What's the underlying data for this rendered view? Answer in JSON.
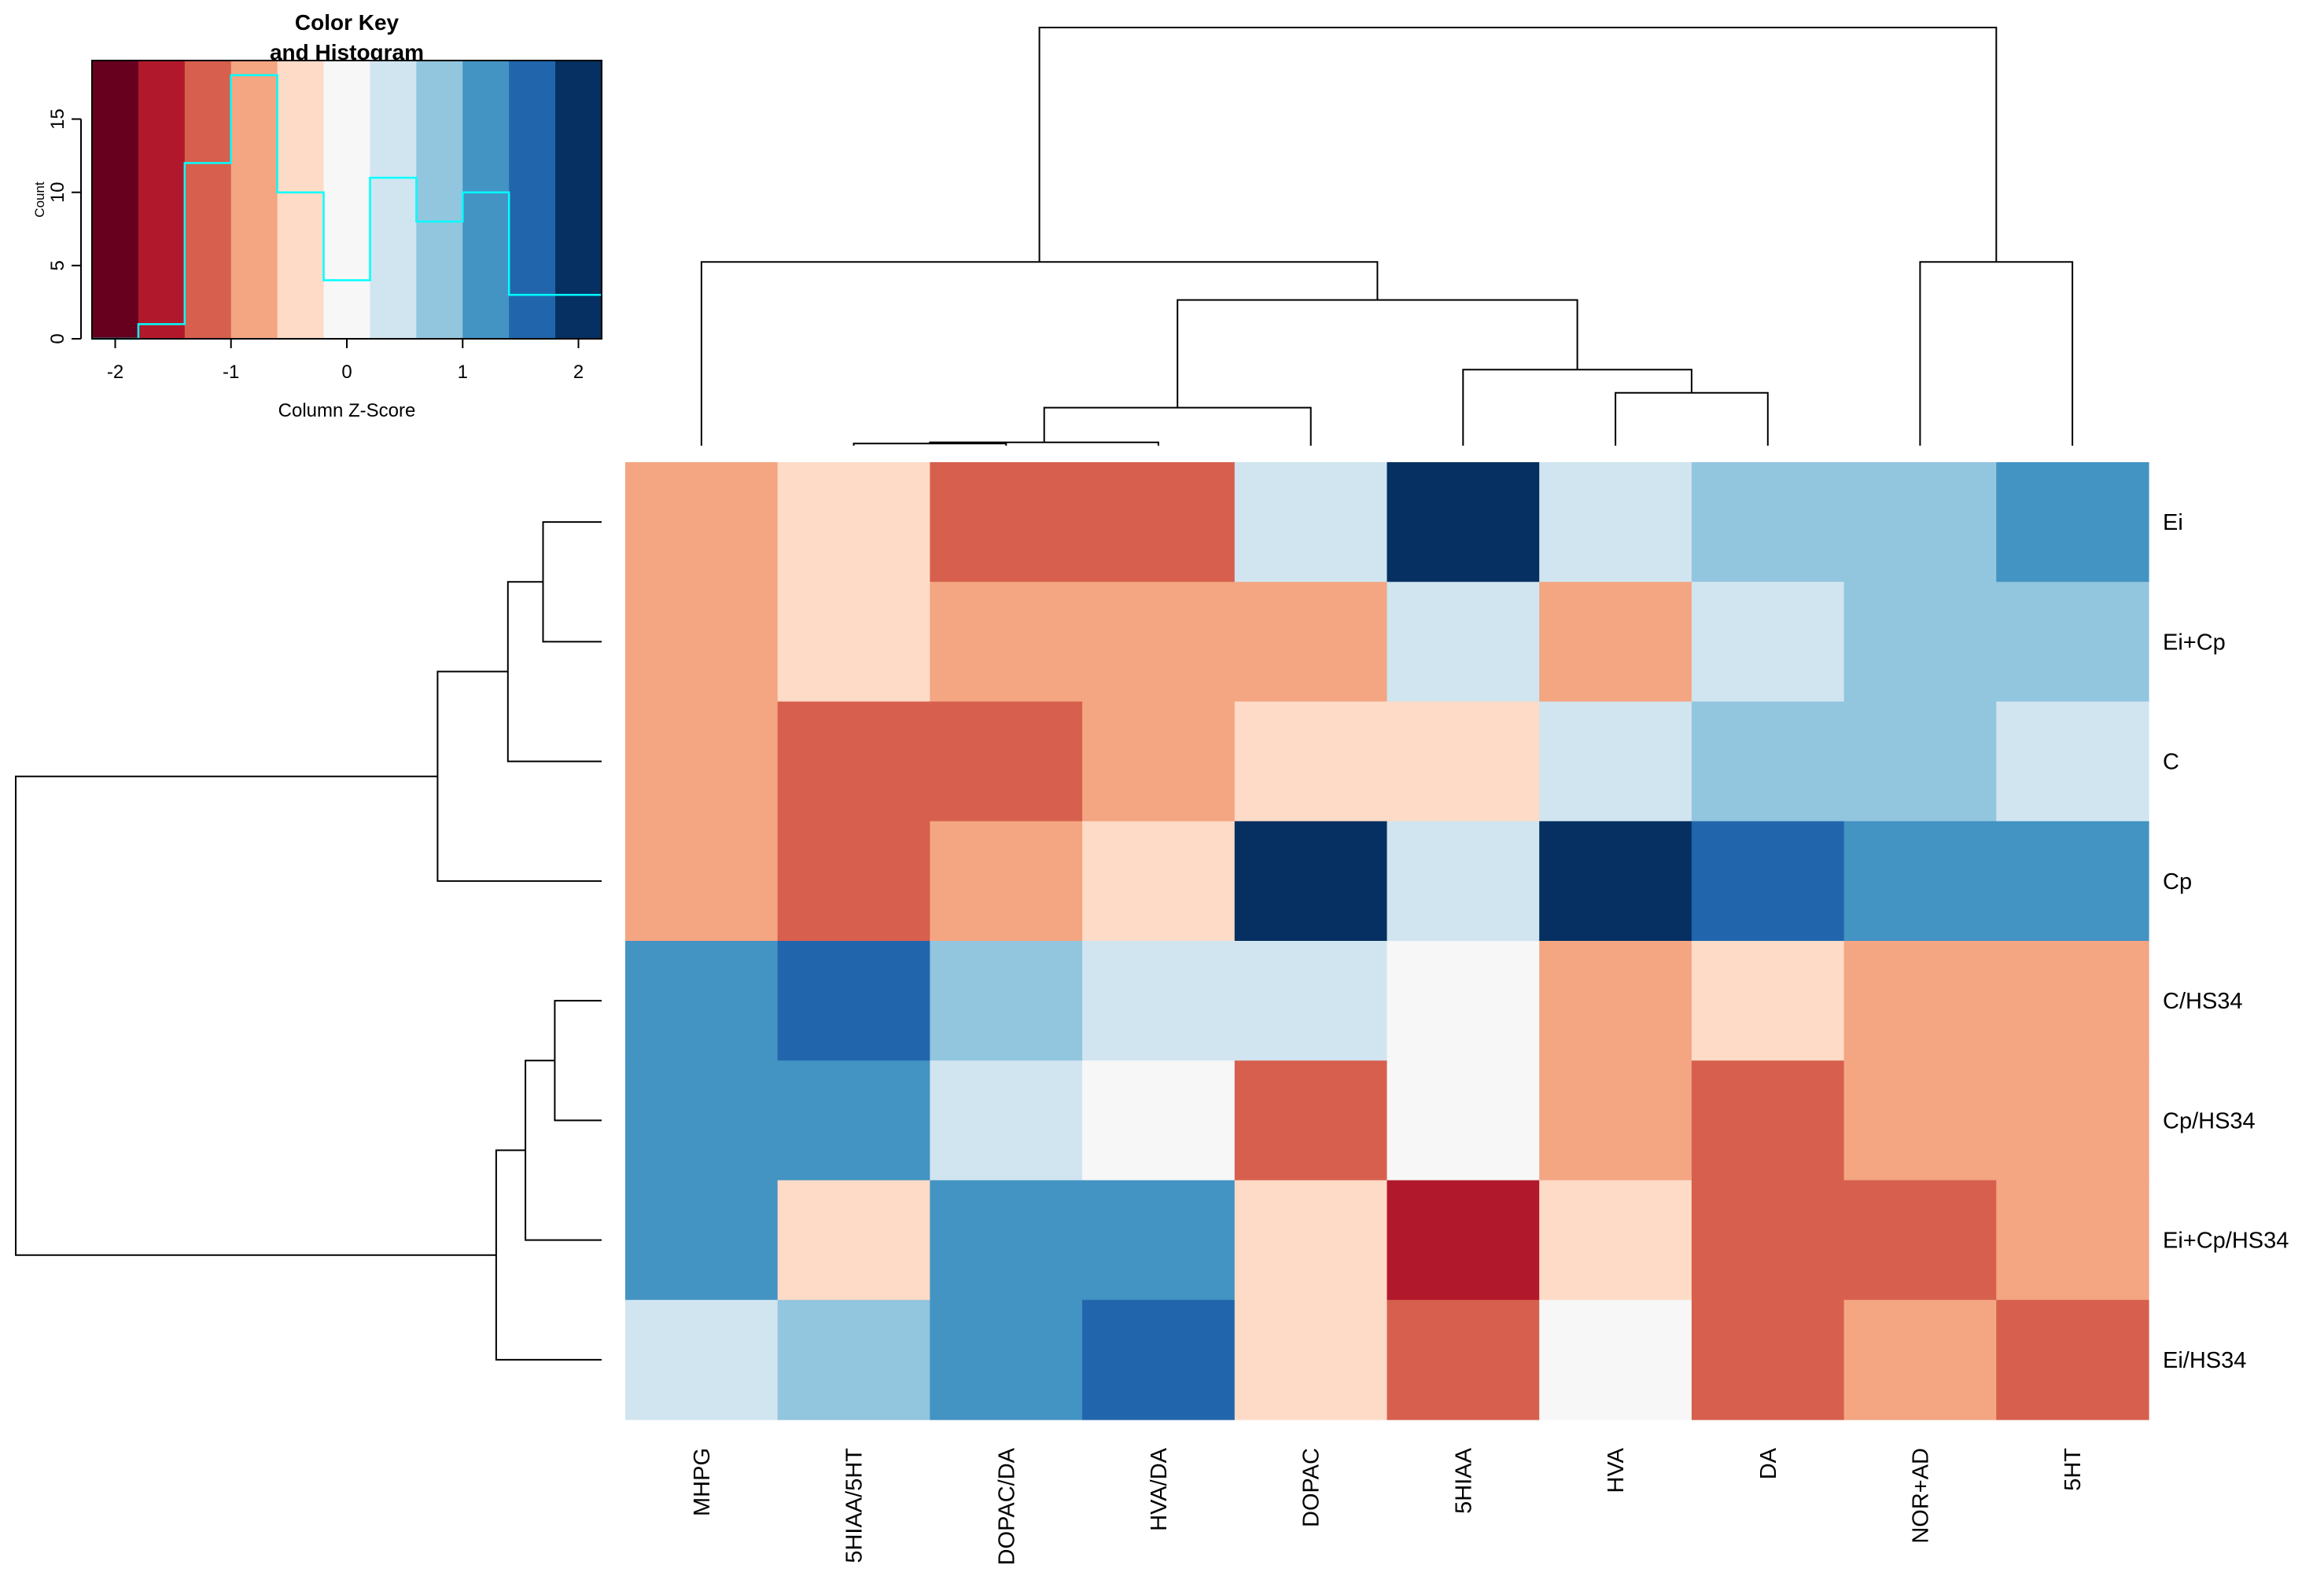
{
  "chart_data": {
    "type": "heatmap",
    "title": "",
    "rows": [
      "Ei",
      "Ei+Cp",
      "C",
      "Cp",
      "C/HS34",
      "Cp/HS34",
      "Ei+Cp/HS34",
      "Ei/HS34"
    ],
    "columns": [
      "MHPG",
      "5HIAA/5HT",
      "DOPAC/DA",
      "HVA/DA",
      "DOPAC",
      "5HIAA",
      "HVA",
      "DA",
      "NOR+AD",
      "5HT"
    ],
    "values": [
      [
        -0.8,
        -0.4,
        -1.2,
        -1.2,
        0.4,
        2.0,
        0.4,
        0.8,
        0.8,
        1.2
      ],
      [
        -0.8,
        -0.4,
        -0.8,
        -0.8,
        -0.8,
        0.4,
        -0.8,
        0.4,
        0.8,
        0.8
      ],
      [
        -0.8,
        -1.2,
        -1.2,
        -0.8,
        -0.4,
        -0.4,
        0.4,
        0.8,
        0.8,
        0.4
      ],
      [
        -0.8,
        -1.2,
        -0.8,
        -0.4,
        2.0,
        0.4,
        2.0,
        1.6,
        1.2,
        1.2
      ],
      [
        1.2,
        1.6,
        0.8,
        0.4,
        0.4,
        0.0,
        -0.8,
        -0.4,
        -0.8,
        -0.8
      ],
      [
        1.2,
        1.2,
        0.4,
        0.0,
        -1.2,
        0.0,
        -0.8,
        -1.2,
        -0.8,
        -0.8
      ],
      [
        1.2,
        -0.4,
        1.2,
        1.2,
        -0.4,
        -1.6,
        -0.4,
        -1.2,
        -1.2,
        -0.8
      ],
      [
        0.4,
        0.8,
        1.2,
        1.6,
        -0.4,
        -1.2,
        0.0,
        -1.2,
        -0.8,
        -1.2
      ]
    ],
    "color_breaks": [
      -2.2,
      -1.8,
      -1.4,
      -1.0,
      -0.6,
      -0.2,
      0.2,
      0.6,
      1.0,
      1.4,
      1.8,
      2.2
    ],
    "colors": [
      "#67001F",
      "#B2182B",
      "#D6604D",
      "#F4A582",
      "#FDDBC7",
      "#F7F7F7",
      "#D1E5F0",
      "#92C5DE",
      "#4393C3",
      "#2166AC",
      "#053061"
    ],
    "color_key": {
      "title_line1": "Color Key",
      "title_line2": "and Histogram",
      "xlabel": "Column Z-Score",
      "ylabel": "Count",
      "x_ticks": [
        "-2",
        "-1",
        "0",
        "1",
        "2"
      ],
      "y_ticks": [
        "0",
        "5",
        "10",
        "15"
      ],
      "xlim": [
        -2.2,
        2.2
      ],
      "ylim": [
        0,
        19
      ],
      "histogram_counts": [
        0,
        1,
        12,
        18,
        10,
        4,
        11,
        8,
        10,
        3,
        3
      ],
      "histogram_color": "#00FFFF"
    },
    "row_dendrogram": {
      "merges": [
        {
          "id": "r1",
          "children": [
            "Ei",
            "Ei+Cp"
          ],
          "height": 0.5
        },
        {
          "id": "r2",
          "children": [
            "r1",
            "C"
          ],
          "height": 0.8
        },
        {
          "id": "r3",
          "children": [
            "r2",
            "Cp"
          ],
          "height": 1.4
        },
        {
          "id": "r4",
          "children": [
            "C/HS34",
            "Cp/HS34"
          ],
          "height": 0.4
        },
        {
          "id": "r5",
          "children": [
            "r4",
            "Ei+Cp/HS34"
          ],
          "height": 0.65
        },
        {
          "id": "r6",
          "children": [
            "r5",
            "Ei/HS34"
          ],
          "height": 0.9
        },
        {
          "id": "r7",
          "children": [
            "r3",
            "r6"
          ],
          "height": 5.0
        }
      ]
    },
    "column_dendrogram": {
      "merges": [
        {
          "id": "c1",
          "children": [
            "5HIAA/5HT",
            "DOPAC/DA"
          ],
          "height": 0.05
        },
        {
          "id": "c2",
          "children": [
            "c1",
            "HVA/DA"
          ],
          "height": 0.08
        },
        {
          "id": "c3",
          "children": [
            "c2",
            "DOPAC"
          ],
          "height": 0.9
        },
        {
          "id": "c4",
          "children": [
            "HVA",
            "DA"
          ],
          "height": 1.25
        },
        {
          "id": "c5",
          "children": [
            "5HIAA",
            "c4"
          ],
          "height": 1.8
        },
        {
          "id": "c6",
          "children": [
            "c3",
            "c5"
          ],
          "height": 3.45
        },
        {
          "id": "c7",
          "children": [
            "MHPG",
            "c6"
          ],
          "height": 4.35
        },
        {
          "id": "c8",
          "children": [
            "NOR+AD",
            "5HT"
          ],
          "height": 4.35
        },
        {
          "id": "c9",
          "children": [
            "c7",
            "c8"
          ],
          "height": 9.9
        }
      ]
    }
  }
}
